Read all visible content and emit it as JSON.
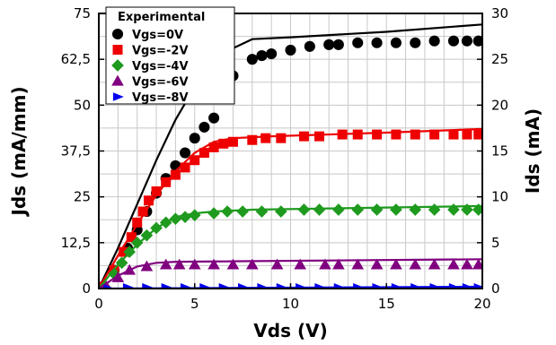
{
  "chart_data": {
    "type": "scatter",
    "xlabel": "Vds (V)",
    "ylabel_left": "Jds (mA/mm)",
    "ylabel_right": "Ids (mA)",
    "xlim": [
      0,
      20
    ],
    "ylim_left": [
      0,
      75
    ],
    "ylim_right": [
      0,
      30
    ],
    "x_ticks": [
      "0",
      "5",
      "10",
      "15",
      "20"
    ],
    "y_ticks_left": [
      "0",
      "12,5",
      "25",
      "37,5",
      "50",
      "62,5",
      "75"
    ],
    "y_ticks_right": [
      "0",
      "5",
      "10",
      "15",
      "20",
      "25",
      "30"
    ],
    "grid": true,
    "legend_title": "Experimental",
    "legend_position": "top-left",
    "series": [
      {
        "name": "Vgs=0V",
        "color": "#000000",
        "marker": "circle",
        "points": [
          [
            0.2,
            0.5
          ],
          [
            0.8,
            5
          ],
          [
            1.5,
            11
          ],
          [
            2,
            16
          ],
          [
            2.5,
            21
          ],
          [
            3,
            26
          ],
          [
            3.5,
            30
          ],
          [
            4,
            33.5
          ],
          [
            4.5,
            37
          ],
          [
            5,
            41
          ],
          [
            5.5,
            44
          ],
          [
            6,
            46.5
          ],
          [
            6.5,
            53
          ],
          [
            7,
            58
          ],
          [
            8,
            62.5
          ],
          [
            8.5,
            63.5
          ],
          [
            9,
            64
          ],
          [
            10,
            65
          ],
          [
            11,
            66
          ],
          [
            12,
            66.5
          ],
          [
            12.5,
            66.5
          ],
          [
            13.5,
            67
          ],
          [
            14.5,
            67
          ],
          [
            15.5,
            67
          ],
          [
            16.5,
            67
          ],
          [
            17.5,
            67.5
          ],
          [
            18.5,
            67.5
          ],
          [
            19.2,
            67.5
          ],
          [
            19.8,
            67.5
          ]
        ],
        "model": [
          [
            0,
            0
          ],
          [
            1,
            11
          ],
          [
            2,
            23
          ],
          [
            3,
            35
          ],
          [
            4,
            46
          ],
          [
            5,
            55
          ],
          [
            6,
            61
          ],
          [
            7,
            65.5
          ],
          [
            8,
            68
          ],
          [
            10,
            68.5
          ],
          [
            15,
            70
          ],
          [
            20,
            72
          ]
        ]
      },
      {
        "name": "Vgs=-2V",
        "color": "#ee0000",
        "marker": "square",
        "points": [
          [
            0.2,
            0.5
          ],
          [
            0.8,
            5
          ],
          [
            1.3,
            10
          ],
          [
            1.7,
            14
          ],
          [
            2,
            18
          ],
          [
            2.3,
            21
          ],
          [
            2.6,
            24
          ],
          [
            3,
            26.5
          ],
          [
            3.5,
            29
          ],
          [
            4,
            31
          ],
          [
            4.5,
            33
          ],
          [
            5,
            35
          ],
          [
            5.5,
            37
          ],
          [
            6,
            38.5
          ],
          [
            6.5,
            39.5
          ],
          [
            7,
            40
          ],
          [
            8,
            40.5
          ],
          [
            8.7,
            41
          ],
          [
            9.5,
            41
          ],
          [
            10.7,
            41.5
          ],
          [
            11.5,
            41.5
          ],
          [
            12.7,
            42
          ],
          [
            13.5,
            42
          ],
          [
            14.5,
            42
          ],
          [
            15.5,
            42
          ],
          [
            16.5,
            42
          ],
          [
            17.5,
            42
          ],
          [
            18.5,
            42
          ],
          [
            19.2,
            42
          ],
          [
            19.8,
            42
          ]
        ],
        "model": [
          [
            0,
            0
          ],
          [
            1,
            9
          ],
          [
            2,
            17.5
          ],
          [
            3,
            25.5
          ],
          [
            4,
            32
          ],
          [
            5,
            37
          ],
          [
            6,
            40
          ],
          [
            7,
            41
          ],
          [
            9,
            41.5
          ],
          [
            15,
            42.5
          ],
          [
            20,
            43.5
          ]
        ]
      },
      {
        "name": "Vgs=-4V",
        "color": "#1e9a1e",
        "marker": "diamond",
        "points": [
          [
            0.3,
            0.5
          ],
          [
            0.8,
            4
          ],
          [
            1.2,
            7
          ],
          [
            1.6,
            10
          ],
          [
            2,
            12.5
          ],
          [
            2.5,
            14.5
          ],
          [
            3,
            16.5
          ],
          [
            3.5,
            18
          ],
          [
            4,
            19
          ],
          [
            4.5,
            19.5
          ],
          [
            5,
            20
          ],
          [
            6,
            20.5
          ],
          [
            6.7,
            21
          ],
          [
            7.5,
            21
          ],
          [
            8.5,
            21
          ],
          [
            9.5,
            21
          ],
          [
            10.7,
            21.5
          ],
          [
            11.5,
            21.5
          ],
          [
            12.5,
            21.5
          ],
          [
            13.5,
            21.5
          ],
          [
            14.5,
            21.5
          ],
          [
            15.5,
            21.5
          ],
          [
            16.5,
            21.5
          ],
          [
            17.5,
            21.5
          ],
          [
            18.5,
            21.5
          ],
          [
            19.2,
            21.5
          ],
          [
            19.8,
            21.5
          ]
        ],
        "model": [
          [
            0,
            0
          ],
          [
            1,
            6.5
          ],
          [
            2,
            12
          ],
          [
            3,
            16.5
          ],
          [
            4,
            19.5
          ],
          [
            5,
            20.5
          ],
          [
            6,
            21
          ],
          [
            8,
            21.5
          ],
          [
            20,
            22.5
          ]
        ]
      },
      {
        "name": "Vgs=-6V",
        "color": "#800080",
        "marker": "triangle",
        "points": [
          [
            0.4,
            0.5
          ],
          [
            1,
            3
          ],
          [
            1.6,
            5
          ],
          [
            2.5,
            6
          ],
          [
            3.5,
            6.5
          ],
          [
            4.2,
            6.5
          ],
          [
            5,
            6.5
          ],
          [
            6,
            6.5
          ],
          [
            7,
            6.5
          ],
          [
            8,
            6.5
          ],
          [
            9.3,
            6.5
          ],
          [
            10.5,
            6.5
          ],
          [
            11.8,
            6.5
          ],
          [
            12.5,
            6.5
          ],
          [
            13.5,
            6.5
          ],
          [
            14.5,
            6.5
          ],
          [
            15.5,
            6.5
          ],
          [
            16.5,
            6.5
          ],
          [
            17.5,
            6.5
          ],
          [
            18.5,
            6.5
          ],
          [
            19.2,
            6.5
          ],
          [
            19.8,
            6.5
          ]
        ],
        "model": [
          [
            0,
            0
          ],
          [
            1,
            3.5
          ],
          [
            2,
            6
          ],
          [
            3,
            7
          ],
          [
            4,
            7.3
          ],
          [
            20,
            8
          ]
        ]
      },
      {
        "name": "Vgs=-8V",
        "color": "#0000ee",
        "marker": "right-triangle",
        "points": [
          [
            0.5,
            0
          ],
          [
            1.5,
            0.3
          ],
          [
            2.5,
            0.3
          ],
          [
            3.5,
            0.3
          ],
          [
            4.5,
            0.3
          ],
          [
            5.5,
            0.3
          ],
          [
            6.5,
            0.3
          ],
          [
            7.5,
            0.3
          ],
          [
            8.5,
            0.3
          ],
          [
            9.5,
            0.3
          ],
          [
            10.5,
            0.3
          ],
          [
            11.5,
            0.3
          ],
          [
            12.5,
            0.3
          ],
          [
            13.5,
            0.3
          ],
          [
            14.5,
            0.3
          ],
          [
            15.5,
            0.3
          ],
          [
            16.5,
            0.3
          ],
          [
            17.5,
            0.3
          ],
          [
            18.5,
            0.3
          ],
          [
            19.2,
            0.3
          ],
          [
            19.8,
            0.3
          ]
        ],
        "model": [
          [
            0,
            0
          ],
          [
            20,
            0.5
          ]
        ]
      }
    ]
  }
}
